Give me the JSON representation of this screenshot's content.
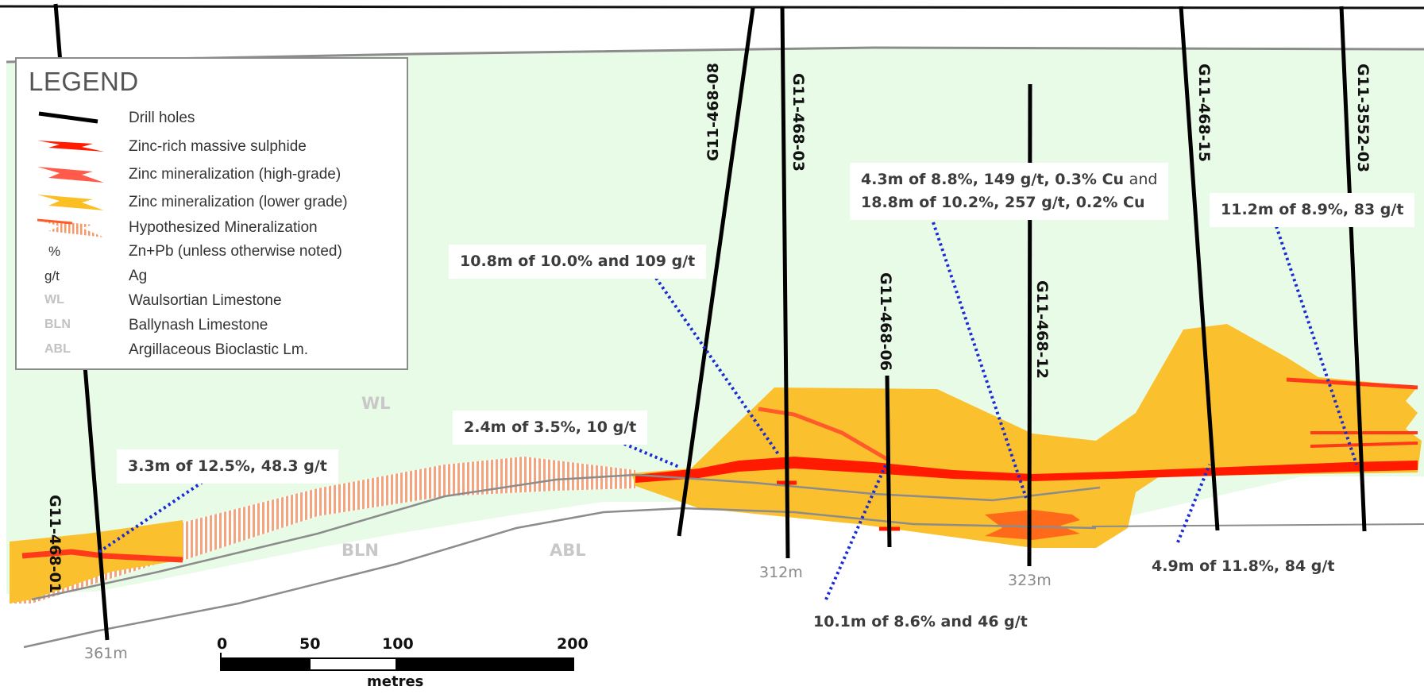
{
  "legend": {
    "title": "LEGEND",
    "items": [
      {
        "symbol": "drill-hole-line",
        "abbr": "",
        "label": "Drill holes",
        "color": "#000000"
      },
      {
        "symbol": "zinc-rich-massive-sulphide-swatch",
        "abbr": "",
        "label": "Zinc-rich massive sulphide",
        "color": "#ff1a00"
      },
      {
        "symbol": "zinc-high-grade-swatch",
        "abbr": "",
        "label": "Zinc mineralization (high-grade)",
        "color": "#ff5a4a"
      },
      {
        "symbol": "zinc-lower-grade-swatch",
        "abbr": "",
        "label": "Zinc mineralization  (lower grade)",
        "color": "#fbbf24"
      },
      {
        "symbol": "hypothesized-mineralization-swatch",
        "abbr": "",
        "label": "Hypothesized Mineralization",
        "color": "#f59a6a"
      },
      {
        "symbol": "",
        "abbr": "%",
        "label": "Zn+Pb (unless otherwise noted)"
      },
      {
        "symbol": "",
        "abbr": "g/t",
        "label": "Ag"
      },
      {
        "symbol": "",
        "abbr": "WL",
        "label": "Waulsortian Limestone"
      },
      {
        "symbol": "",
        "abbr": "BLN",
        "label": "Ballynash Limestone"
      },
      {
        "symbol": "",
        "abbr": "ABL",
        "label": "Argillaceous Bioclastic Lm."
      }
    ]
  },
  "drill_holes": [
    {
      "id": "G11-468-01",
      "depth": "361m"
    },
    {
      "id": "G11-468-08",
      "depth": ""
    },
    {
      "id": "G11-468-03",
      "depth": "312m"
    },
    {
      "id": "G11-468-06",
      "depth": ""
    },
    {
      "id": "G11-468-12",
      "depth": "323m"
    },
    {
      "id": "G11-468-15",
      "depth": ""
    },
    {
      "id": "G11-3552-03",
      "depth": ""
    }
  ],
  "intercepts": {
    "hole_01": "3.3m of 12.5%, 48.3 g/t",
    "hole_08_a": "2.4m of 3.5%, 10 g/t",
    "hole_08_b": "10.8m of 10.0% and 109 g/t",
    "hole_12_line1_a": "4.3m of 8.8%, 149 g/t, 0.3% Cu",
    "hole_12_line1_b": "and",
    "hole_12_line2": "18.8m of 10.2%, 257 g/t, 0.2% Cu",
    "hole_06": "10.1m of 8.6% and 46 g/t",
    "hole_15": "4.9m of 11.8%, 84 g/t",
    "hole_3552_03": "11.2m of 8.9%, 83 g/t"
  },
  "units": {
    "wl": "WL",
    "bln": "BLN",
    "abl": "ABL"
  },
  "scale_bar": {
    "ticks": [
      "0",
      "50",
      "100",
      "200"
    ],
    "unit": "metres"
  },
  "colors": {
    "background_wl": "#e8fbe6",
    "massive_sulphide": "#ff1a00",
    "high_grade": "#ff5a2a",
    "lower_grade": "#fbc02d",
    "hypothesized": "#f4a47c",
    "leader_line": "#1a2bd6",
    "drill_hole": "#000000",
    "contact_line": "#8c8c8c"
  }
}
